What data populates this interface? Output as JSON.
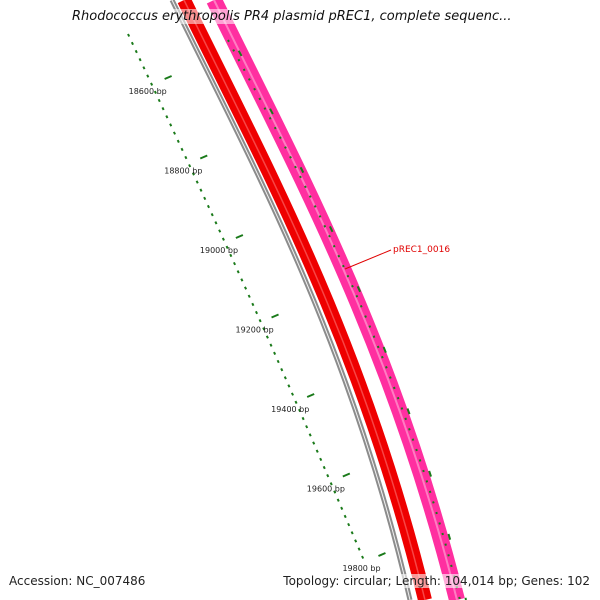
{
  "title": "Rhodococcus erythropolis PR4 plasmid pREC1, complete sequenc...",
  "footer": {
    "accession": "Accession: NC_007486",
    "summary": "Topology: circular; Length: 104,014 bp; Genes: 102"
  },
  "ruler": {
    "labels": [
      "18600 bp",
      "18800 bp",
      "19000 bp",
      "19200 bp",
      "19400 bp",
      "19600 bp",
      "19800 bp"
    ],
    "tick_color": "#1a7a1a"
  },
  "feature": {
    "label": "pREC1_0016",
    "label_color": "#e00000"
  },
  "tracks": {
    "backbone_color": "#808080",
    "forward_color": "#ee0000",
    "reverse_color": "#ff2fa0"
  }
}
